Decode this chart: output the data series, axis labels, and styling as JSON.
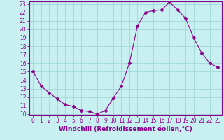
{
  "x": [
    0,
    1,
    2,
    3,
    4,
    5,
    6,
    7,
    8,
    9,
    10,
    11,
    12,
    13,
    14,
    15,
    16,
    17,
    18,
    19,
    20,
    21,
    22,
    23
  ],
  "y": [
    15,
    13.3,
    12.5,
    11.8,
    11.1,
    10.9,
    10.4,
    10.3,
    10.0,
    10.4,
    11.9,
    13.3,
    16.0,
    20.4,
    22.0,
    22.2,
    22.3,
    23.2,
    22.3,
    21.3,
    19.0,
    17.2,
    16.0,
    15.5
  ],
  "line_color": "#8b008b",
  "marker": "D",
  "marker_size": 2.5,
  "bg_color": "#c8f0f0",
  "grid_color": "#a0d8d8",
  "xlabel": "Windchill (Refroidissement éolien,°C)",
  "xlabel_color": "#8b008b",
  "ylim": [
    10,
    23
  ],
  "xlim": [
    -0.5,
    23.5
  ],
  "yticks": [
    10,
    11,
    12,
    13,
    14,
    15,
    16,
    17,
    18,
    19,
    20,
    21,
    22,
    23
  ],
  "xticks": [
    0,
    1,
    2,
    3,
    4,
    5,
    6,
    7,
    8,
    9,
    10,
    11,
    12,
    13,
    14,
    15,
    16,
    17,
    18,
    19,
    20,
    21,
    22,
    23
  ],
  "tick_label_fontsize": 5.5,
  "xlabel_fontsize": 6.5,
  "axis_color": "#8b008b",
  "spine_color": "#8b008b"
}
